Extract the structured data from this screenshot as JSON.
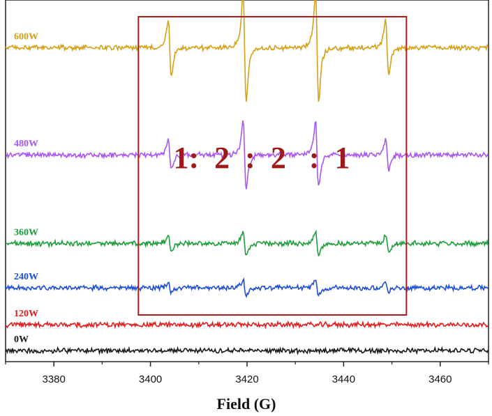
{
  "chart_data": {
    "type": "line",
    "title": "",
    "xlabel": "Field (G)",
    "ylabel": "",
    "xlim": [
      3370,
      3470
    ],
    "xticks": [
      3380,
      3400,
      3420,
      3440,
      3460
    ],
    "grid": false,
    "legend": "inline-left",
    "annotation": "1:  2  :  2   :  1",
    "highlight_box": {
      "x_from": 3397.5,
      "x_to": 3453.0,
      "color": "#b01c1c"
    },
    "hyperfine_peaks": [
      3404,
      3419.5,
      3434.5,
      3449
    ],
    "series": [
      {
        "name": "600W",
        "color": "#d4a017",
        "baseline": 85,
        "amplitude": [
          1.0,
          2.0,
          2.0,
          1.0
        ]
      },
      {
        "name": "480W",
        "color": "#a855f7",
        "baseline": 56,
        "amplitude": [
          0.55,
          1.2,
          1.2,
          0.55
        ]
      },
      {
        "name": "360W",
        "color": "#1e9e3a",
        "baseline": 32,
        "amplitude": [
          0.32,
          0.45,
          0.45,
          0.32
        ]
      },
      {
        "name": "240W",
        "color": "#1d4ed8",
        "baseline": 20,
        "amplitude": [
          0.18,
          0.3,
          0.3,
          0.18
        ]
      },
      {
        "name": "120W",
        "color": "#e11d1d",
        "baseline": 10,
        "amplitude": [
          0,
          0,
          0,
          0
        ]
      },
      {
        "name": "0W",
        "color": "#1a1a1a",
        "baseline": 3,
        "amplitude": [
          0,
          0,
          0,
          0
        ]
      }
    ]
  }
}
